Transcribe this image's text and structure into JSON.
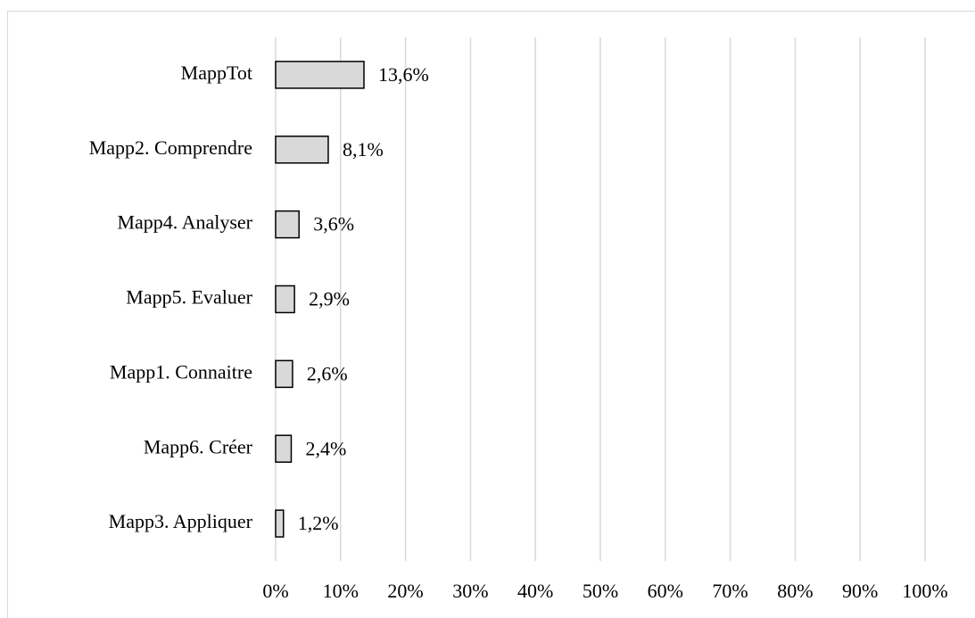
{
  "chart_data": {
    "type": "hbar",
    "categories": [
      "MappTot",
      "Mapp2. Comprendre",
      "Mapp4. Analyser",
      "Mapp5. Evaluer",
      "Mapp1. Connaitre",
      "Mapp6. Créer",
      "Mapp3. Appliquer"
    ],
    "values": [
      13.6,
      8.1,
      3.6,
      2.9,
      2.6,
      2.4,
      1.2
    ],
    "value_labels": [
      "13,6%",
      "8,1%",
      "3,6%",
      "2,9%",
      "2,6%",
      "2,4%",
      "1,2%"
    ],
    "color": "#d9d9d9",
    "xlim": [
      0,
      100
    ],
    "xticks": [
      {
        "value": 0,
        "label": "0%"
      },
      {
        "value": 10,
        "label": "10%"
      },
      {
        "value": 20,
        "label": "20%"
      },
      {
        "value": 30,
        "label": "30%"
      },
      {
        "value": 40,
        "label": "40%"
      },
      {
        "value": 50,
        "label": "50%"
      },
      {
        "value": 60,
        "label": "60%"
      },
      {
        "value": 70,
        "label": "70%"
      },
      {
        "value": 80,
        "label": "80%"
      },
      {
        "value": 90,
        "label": "90%"
      },
      {
        "value": 100,
        "label": "100%"
      }
    ],
    "grid": true
  }
}
